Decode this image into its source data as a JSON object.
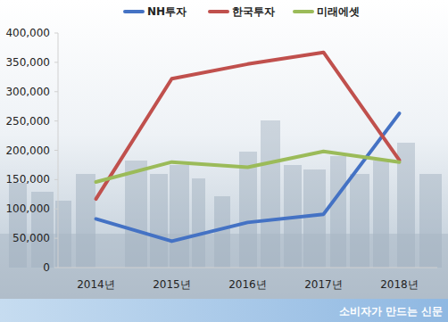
{
  "chart_data": {
    "type": "line",
    "categories": [
      "2014년",
      "2015년",
      "2016년",
      "2017년",
      "2018년"
    ],
    "series": [
      {
        "name": "NH투자",
        "color": "#4472c4",
        "values": [
          83000,
          45000,
          77000,
          91000,
          263000
        ]
      },
      {
        "name": "한국투자",
        "color": "#c0504d",
        "values": [
          117000,
          322000,
          347000,
          367000,
          183000
        ]
      },
      {
        "name": "미래에셋",
        "color": "#9bbb59",
        "values": [
          146000,
          180000,
          171000,
          198000,
          180000
        ]
      }
    ],
    "ylim": [
      0,
      400000
    ],
    "yticks": [
      0,
      {
        "value": 50000,
        "label": "50,000"
      },
      {
        "value": 100000,
        "label": "100,000"
      },
      {
        "value": 150000,
        "label": "150,000"
      },
      {
        "value": 200000,
        "label": "200,000"
      },
      {
        "value": 250000,
        "label": "250,000"
      },
      {
        "value": 300000,
        "label": "300,000"
      },
      {
        "value": 350000,
        "label": "350,000"
      },
      {
        "value": 400000,
        "label": "400,000"
      }
    ],
    "grid": false,
    "legend": "top",
    "annotations": [
      "소비자가 만드는 신문"
    ]
  }
}
